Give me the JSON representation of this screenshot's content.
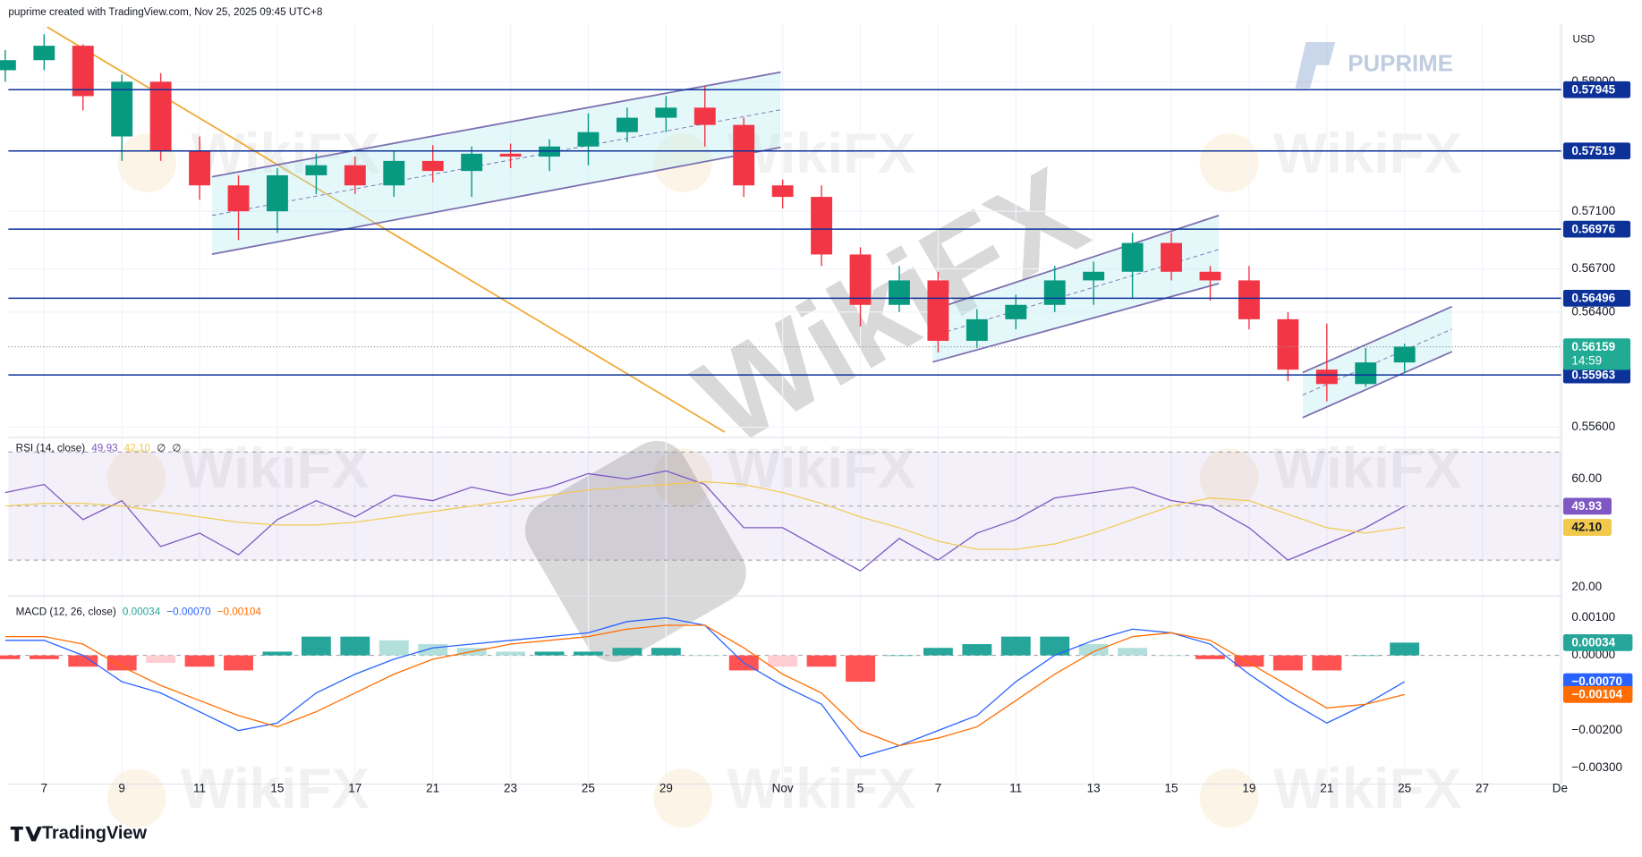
{
  "header": {
    "credit": "puprime created with TradingView.com, Nov 25, 2025 09:45 UTC+8",
    "currency": "USD",
    "brand": "PUPRIME",
    "watermark": "WikiFX",
    "footer": "TradingView"
  },
  "chart_data": [
    {
      "type": "candlestick",
      "categories": [
        null,
        "7",
        null,
        "9",
        null,
        "11",
        null,
        "15",
        null,
        "17",
        null,
        "21",
        null,
        "23",
        null,
        "25",
        null,
        "29",
        null,
        null,
        "Nov",
        null,
        "5",
        null,
        "7",
        null,
        "11",
        null,
        "13",
        null,
        "15",
        null,
        "19",
        null,
        "21",
        null,
        "25",
        null,
        "27",
        null,
        "De"
      ],
      "open": [
        0.5808,
        0.5815,
        0.5825,
        0.5762,
        0.58,
        0.5752,
        0.5728,
        0.571,
        0.5735,
        0.5742,
        0.5728,
        0.5745,
        0.5738,
        0.575,
        0.5748,
        0.5755,
        0.5765,
        0.5775,
        0.5782,
        0.577,
        0.5728,
        0.572,
        0.568,
        0.5645,
        0.5662,
        0.562,
        0.5635,
        0.5645,
        0.5662,
        0.5668,
        0.5688,
        0.5668,
        0.5662,
        0.5635,
        0.56,
        0.559,
        0.5605,
        null,
        null,
        null,
        null
      ],
      "high": [
        0.5822,
        0.5833,
        0.5826,
        0.5805,
        0.5806,
        0.5762,
        0.5735,
        0.574,
        0.575,
        0.5748,
        0.5752,
        0.5756,
        0.5755,
        0.5757,
        0.576,
        0.5778,
        0.5782,
        0.579,
        0.5797,
        0.5775,
        0.5732,
        0.5728,
        0.5685,
        0.5672,
        0.5668,
        0.5642,
        0.5652,
        0.5672,
        0.5675,
        0.5695,
        0.5695,
        0.5672,
        0.5672,
        0.564,
        0.5632,
        0.5615,
        0.5618,
        null,
        null,
        null,
        null
      ],
      "low": [
        0.58,
        0.5808,
        0.578,
        0.5745,
        0.5745,
        0.5718,
        0.569,
        0.5695,
        0.5722,
        0.5722,
        0.572,
        0.573,
        0.572,
        0.574,
        0.5738,
        0.5742,
        0.5758,
        0.5765,
        0.5755,
        0.572,
        0.5712,
        0.5672,
        0.563,
        0.564,
        0.5612,
        0.5615,
        0.5628,
        0.564,
        0.5645,
        0.565,
        0.5662,
        0.5648,
        0.5628,
        0.5592,
        0.5578,
        0.5588,
        0.5598,
        null,
        null,
        null,
        null
      ],
      "close": [
        0.5815,
        0.5825,
        0.579,
        0.58,
        0.5752,
        0.5728,
        0.571,
        0.5735,
        0.5742,
        0.5728,
        0.5745,
        0.5738,
        0.575,
        0.5748,
        0.5755,
        0.5765,
        0.5775,
        0.5782,
        0.577,
        0.5728,
        0.572,
        0.568,
        0.5645,
        0.5662,
        0.562,
        0.5635,
        0.5645,
        0.5662,
        0.5668,
        0.5688,
        0.5668,
        0.5662,
        0.5635,
        0.56,
        0.559,
        0.5605,
        0.5616,
        null,
        null,
        null,
        null
      ],
      "up_color": "#089981",
      "down_color": "#f23645",
      "ylim": [
        0.5554,
        0.584
      ],
      "yticks": [
        {
          "value": 0.58,
          "label": "0.58000"
        },
        {
          "value": 0.571,
          "label": "0.57100"
        },
        {
          "value": 0.567,
          "label": "0.56700"
        },
        {
          "value": 0.564,
          "label": "0.56400"
        },
        {
          "value": 0.556,
          "label": "0.55600"
        }
      ],
      "grid": true,
      "levels": [
        0.57945,
        0.57519,
        0.56976,
        0.56496,
        0.55963
      ],
      "level_color": "#0c3299",
      "last_price": {
        "value": 0.56159,
        "countdown": "14:59",
        "color": "#22ab94"
      },
      "channels": [
        {
          "upper": [
            [
              5.32,
              0.5734
            ],
            [
              19.95,
              0.58067
            ]
          ],
          "lower": [
            [
              5.32,
              0.56802
            ],
            [
              19.95,
              0.57544
            ]
          ]
        },
        {
          "upper": [
            [
              23.86,
              0.56416
            ],
            [
              31.22,
              0.57071
            ]
          ],
          "lower": [
            [
              23.86,
              0.56053
            ],
            [
              31.22,
              0.56598
            ]
          ]
        },
        {
          "upper": [
            [
              33.38,
              0.5598
            ],
            [
              37.22,
              0.56438
            ]
          ],
          "lower": [
            [
              33.38,
              0.55667
            ],
            [
              37.22,
              0.56125
            ]
          ]
        }
      ],
      "channel_color": "#7b6fb0",
      "trendline": {
        "points": [
          [
            1.08,
            0.5838
          ],
          [
            18.51,
            0.55566
          ]
        ],
        "color": "#f0a830"
      }
    },
    {
      "type": "line",
      "title": "RSI (14, close)",
      "legend_values": [
        49.93,
        {
          "value": 42.1,
          "label": "42.10"
        },
        "∅",
        "∅"
      ],
      "series": [
        {
          "color": "#7e57c2",
          "values": [
            55,
            58,
            45,
            52,
            35,
            40,
            32,
            45,
            52,
            46,
            54,
            52,
            57,
            54,
            57,
            62,
            60,
            63,
            58,
            42,
            42,
            34,
            26,
            38,
            30,
            40,
            45,
            53,
            55,
            57,
            52,
            50,
            42,
            30,
            36,
            42,
            49.93
          ]
        },
        {
          "color": "#f2c94c",
          "values": [
            50,
            51,
            51,
            50,
            48,
            46,
            44,
            43,
            43,
            44,
            46,
            48,
            50,
            52,
            54,
            56,
            57,
            58,
            59,
            58,
            55,
            51,
            46,
            42,
            37,
            34,
            34,
            36,
            40,
            45,
            50,
            53,
            52,
            47,
            42,
            40,
            42.1
          ]
        }
      ],
      "ylim": [
        17.7,
        74.8
      ],
      "yticks": [
        {
          "value": 60,
          "label": "60.00"
        },
        {
          "value": 20,
          "label": "20.00"
        }
      ],
      "levels": [
        70,
        50,
        30
      ]
    },
    {
      "type": "macd",
      "title": "MACD (12, 26, close)",
      "legend_values": [
        0.00034,
        {
          "value": -0.0007,
          "label": "−0.00070"
        },
        {
          "value": -0.00104,
          "label": "−0.00104"
        }
      ],
      "histogram": {
        "colors": [
          "#26a69a",
          "#b2dfdb",
          "#ff5252",
          "#ffcdd2"
        ],
        "values": [
          -0.0001,
          -0.0001,
          -0.0003,
          -0.0004,
          -0.0002,
          -0.0003,
          -0.0004,
          0.0001,
          0.0005,
          0.0005,
          0.0004,
          0.0003,
          0.0002,
          0.0001,
          0.0001,
          0.0001,
          0.0002,
          0.0002,
          0,
          -0.0004,
          -0.0003,
          -0.0003,
          -0.0007,
          0,
          0.0002,
          0.0003,
          0.0005,
          0.0005,
          0.0003,
          0.0002,
          0,
          -0.0001,
          -0.0003,
          -0.0004,
          -0.0004,
          0,
          0.00034
        ]
      },
      "series": [
        {
          "color": "#2962ff",
          "values": [
            0.0004,
            0.0004,
            0,
            -0.0007,
            -0.001,
            -0.0015,
            -0.002,
            -0.0018,
            -0.001,
            -0.0005,
            -0.0001,
            0.0002,
            0.0003,
            0.0004,
            0.0005,
            0.0006,
            0.0009,
            0.001,
            0.0008,
            -0.0002,
            -0.0008,
            -0.0013,
            -0.0027,
            -0.0024,
            -0.002,
            -0.0016,
            -0.0007,
            0,
            0.0004,
            0.0007,
            0.0006,
            0.0003,
            -0.0005,
            -0.0012,
            -0.0018,
            -0.0013,
            -0.0007
          ]
        },
        {
          "color": "#ff6d00",
          "values": [
            0.0005,
            0.0005,
            0.0003,
            -0.0003,
            -0.0008,
            -0.0012,
            -0.0016,
            -0.0019,
            -0.0015,
            -0.001,
            -0.0005,
            -0.0001,
            0.0001,
            0.0003,
            0.0004,
            0.0005,
            0.0007,
            0.0008,
            0.0008,
            0.0002,
            -0.0005,
            -0.001,
            -0.002,
            -0.0024,
            -0.0022,
            -0.0019,
            -0.0012,
            -0.0005,
            0.0001,
            0.0005,
            0.0006,
            0.0004,
            -0.0002,
            -0.0008,
            -0.0014,
            -0.0013,
            -0.00104
          ]
        }
      ],
      "ylim": [
        -0.00338,
        0.00151
      ],
      "yticks": [
        {
          "value": 0.001,
          "label": "0.00100"
        },
        {
          "value": 0,
          "label": "0.00000"
        },
        {
          "value": -0.002,
          "label": "−0.00200"
        },
        {
          "value": -0.003,
          "label": "−0.00300"
        }
      ]
    }
  ]
}
